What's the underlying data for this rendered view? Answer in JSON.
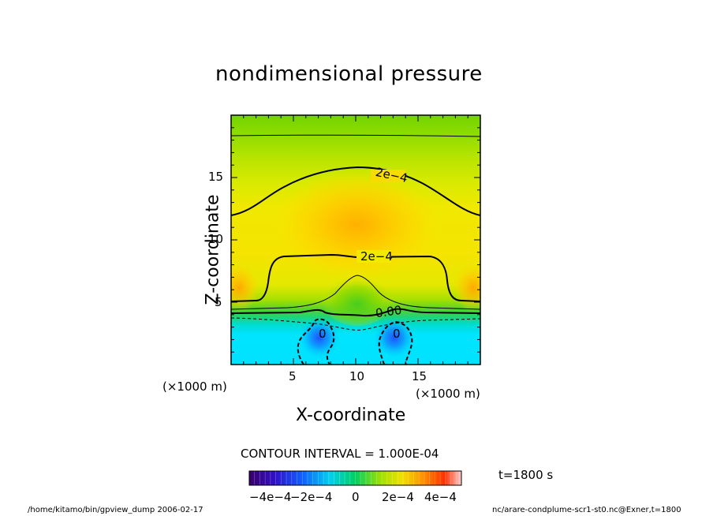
{
  "chart_data": {
    "type": "heatmap",
    "title": "nondimensional pressure",
    "xlabel": "X-coordinate",
    "ylabel": "Z-coordinate",
    "x_unit": "(×1000 m)",
    "y_unit": "(×1000 m)",
    "xlim": [
      0,
      20
    ],
    "ylim": [
      0,
      20
    ],
    "x_ticks": [
      5,
      10,
      15
    ],
    "y_ticks": [
      5,
      10,
      15
    ],
    "x_tick_labels": [
      "5",
      "10",
      "15"
    ],
    "y_tick_labels": [
      "5",
      "10",
      "15"
    ],
    "contour_interval": "CONTOUR INTERVAL = 1.000E-04",
    "time_label": "t=1800 s",
    "colorbar": {
      "range": [
        -0.0005,
        0.0005
      ],
      "tick_labels": [
        "−4e−4",
        "−2e−4",
        "0",
        "2e−4",
        "4e−4"
      ]
    },
    "contour_labels": [
      {
        "text": "2e−4",
        "x": 13.6,
        "z": 15.1
      },
      {
        "text": "2e−4",
        "x": 11.7,
        "z": 8.5
      },
      {
        "text": "0.00",
        "x": 12.9,
        "z": 4.0
      },
      {
        "text": "0",
        "x": 7.3,
        "z": 2.4
      },
      {
        "text": "0",
        "x": 12.8,
        "z": 2.4
      }
    ]
  },
  "footer": {
    "left": "/home/kitamo/bin/gpview_dump  2006-02-17",
    "right": "nc/arare-condplume-scr1-st0.nc@Exner,t=1800"
  }
}
